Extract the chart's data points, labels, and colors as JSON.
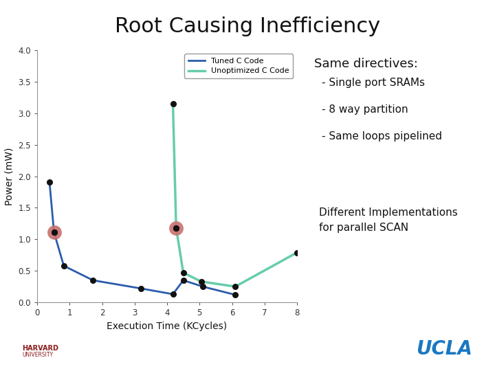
{
  "title": "Root Causing Inefficiency",
  "xlabel": "Execution Time (KCycles)",
  "ylabel": "Power (mW)",
  "xlim": [
    0,
    8
  ],
  "ylim": [
    0,
    4.0
  ],
  "xticks": [
    0,
    1,
    2,
    3,
    4,
    5,
    6,
    7,
    8
  ],
  "yticks": [
    0,
    0.5,
    1.0,
    1.5,
    2.0,
    2.5,
    3.0,
    3.5,
    4.0
  ],
  "tuned_x": [
    0.38,
    0.52,
    0.82,
    1.72,
    3.2,
    4.18,
    4.5,
    5.1,
    6.1
  ],
  "tuned_y": [
    1.91,
    1.11,
    0.58,
    0.35,
    0.22,
    0.13,
    0.35,
    0.25,
    0.12
  ],
  "tuned_color": "#2a5caa",
  "tuned_label": "Tuned C Code",
  "unopt_x": [
    4.18,
    4.28,
    4.5,
    5.05,
    6.1,
    8.0
  ],
  "unopt_y": [
    3.15,
    1.18,
    0.47,
    0.33,
    0.25,
    0.79
  ],
  "unopt_color": "#66cdaa",
  "unopt_label": "Unoptimized C Code",
  "highlight_tuned": [
    0.52,
    1.11
  ],
  "highlight_unopt": [
    4.28,
    1.18
  ],
  "highlight_color": "#c97070",
  "dot_color": "#111111",
  "text_directives": "Same directives:",
  "text_bullets": [
    "- Single port SRAMs",
    "- 8 way partition",
    "- Same loops pipelined"
  ],
  "text_diff": "Different Implementations\nfor parallel SCAN",
  "bg_color": "#ffffff",
  "harvard_color": "#8b1a1a",
  "ucla_color": "#1a78c2",
  "footer_line_color": "#8b1a1a"
}
